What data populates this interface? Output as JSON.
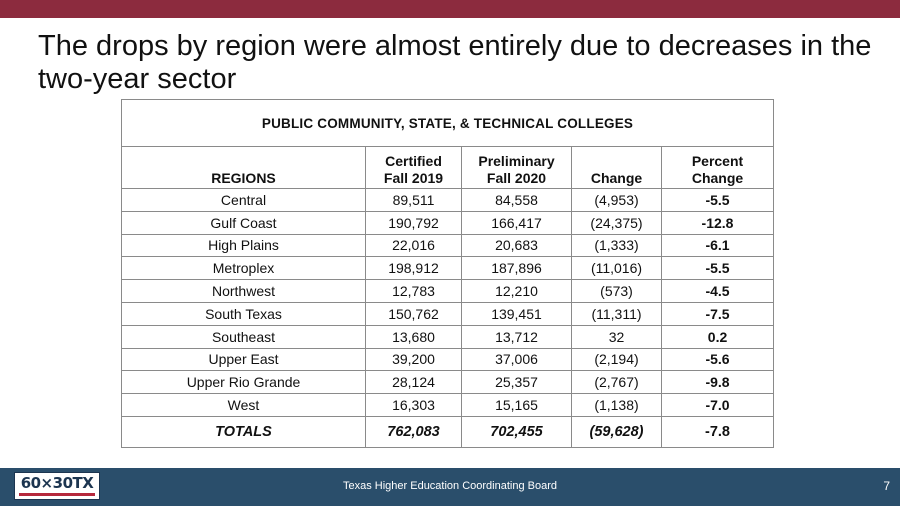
{
  "slide": {
    "title": "The drops by region were almost entirely due to decreases in the two-year sector",
    "accent_color": "#8c2b3e",
    "footer_color": "#2a4e6b"
  },
  "table": {
    "caption": "PUBLIC COMMUNITY, STATE, & TECHNICAL COLLEGES",
    "headers": {
      "region": "REGIONS",
      "certified": [
        "Certified",
        "Fall 2019"
      ],
      "preliminary": [
        "Preliminary",
        "Fall 2020"
      ],
      "change": "Change",
      "percent": [
        "Percent",
        "Change"
      ]
    },
    "rows": [
      {
        "region": "Central",
        "certified": "89,511",
        "preliminary": "84,558",
        "change": "(4,953)",
        "percent": "-5.5"
      },
      {
        "region": "Gulf Coast",
        "certified": "190,792",
        "preliminary": "166,417",
        "change": "(24,375)",
        "percent": "-12.8"
      },
      {
        "region": "High Plains",
        "certified": "22,016",
        "preliminary": "20,683",
        "change": "(1,333)",
        "percent": "-6.1"
      },
      {
        "region": "Metroplex",
        "certified": "198,912",
        "preliminary": "187,896",
        "change": "(11,016)",
        "percent": "-5.5"
      },
      {
        "region": "Northwest",
        "certified": "12,783",
        "preliminary": "12,210",
        "change": "(573)",
        "percent": "-4.5"
      },
      {
        "region": "South Texas",
        "certified": "150,762",
        "preliminary": "139,451",
        "change": "(11,311)",
        "percent": "-7.5"
      },
      {
        "region": "Southeast",
        "certified": "13,680",
        "preliminary": "13,712",
        "change": "32",
        "percent": "0.2"
      },
      {
        "region": "Upper East",
        "certified": "39,200",
        "preliminary": "37,006",
        "change": "(2,194)",
        "percent": "-5.6"
      },
      {
        "region": "Upper Rio Grande",
        "certified": "28,124",
        "preliminary": "25,357",
        "change": "(2,767)",
        "percent": "-9.8"
      },
      {
        "region": "West",
        "certified": "16,303",
        "preliminary": "15,165",
        "change": "(1,138)",
        "percent": "-7.0"
      }
    ],
    "totals": {
      "label": "TOTALS",
      "certified": "762,083",
      "preliminary": "702,455",
      "change": "(59,628)",
      "percent": "-7.8"
    }
  },
  "footer": {
    "logo_text": "60×30TX",
    "organization": "Texas Higher Education Coordinating Board",
    "page_number": "7"
  }
}
